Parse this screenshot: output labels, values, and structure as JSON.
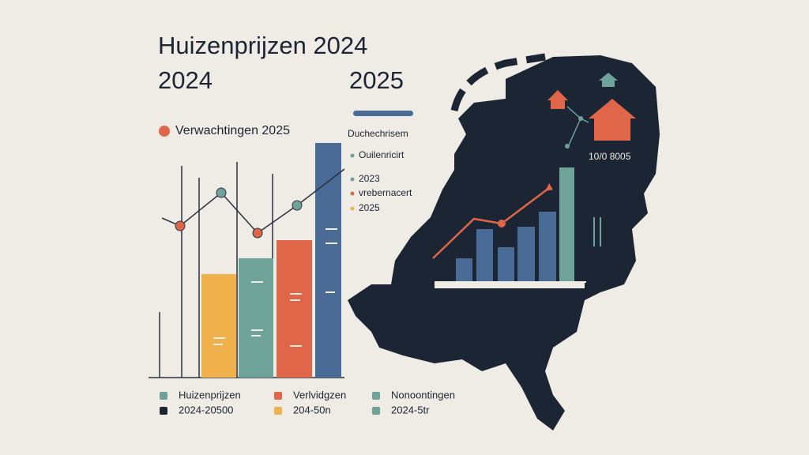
{
  "header": {
    "title_line1": "Huizenprijzen 2024",
    "title_left": "2024",
    "title_right": "2025"
  },
  "top_legend": {
    "label": "Verwachtingen 2025"
  },
  "side_legend": {
    "heading": "Duchechrisem",
    "items": [
      "Ouilenricirt",
      "2023",
      "vrebernacert",
      "2025"
    ]
  },
  "map_label": "10/0 8005",
  "bottom_legend": {
    "row1": [
      "Huizenprijzen",
      "Verlvidgzen",
      "Nonoontingen"
    ],
    "row2": [
      "2024-20500",
      "204-50n",
      "2024-5tr"
    ]
  }
}
